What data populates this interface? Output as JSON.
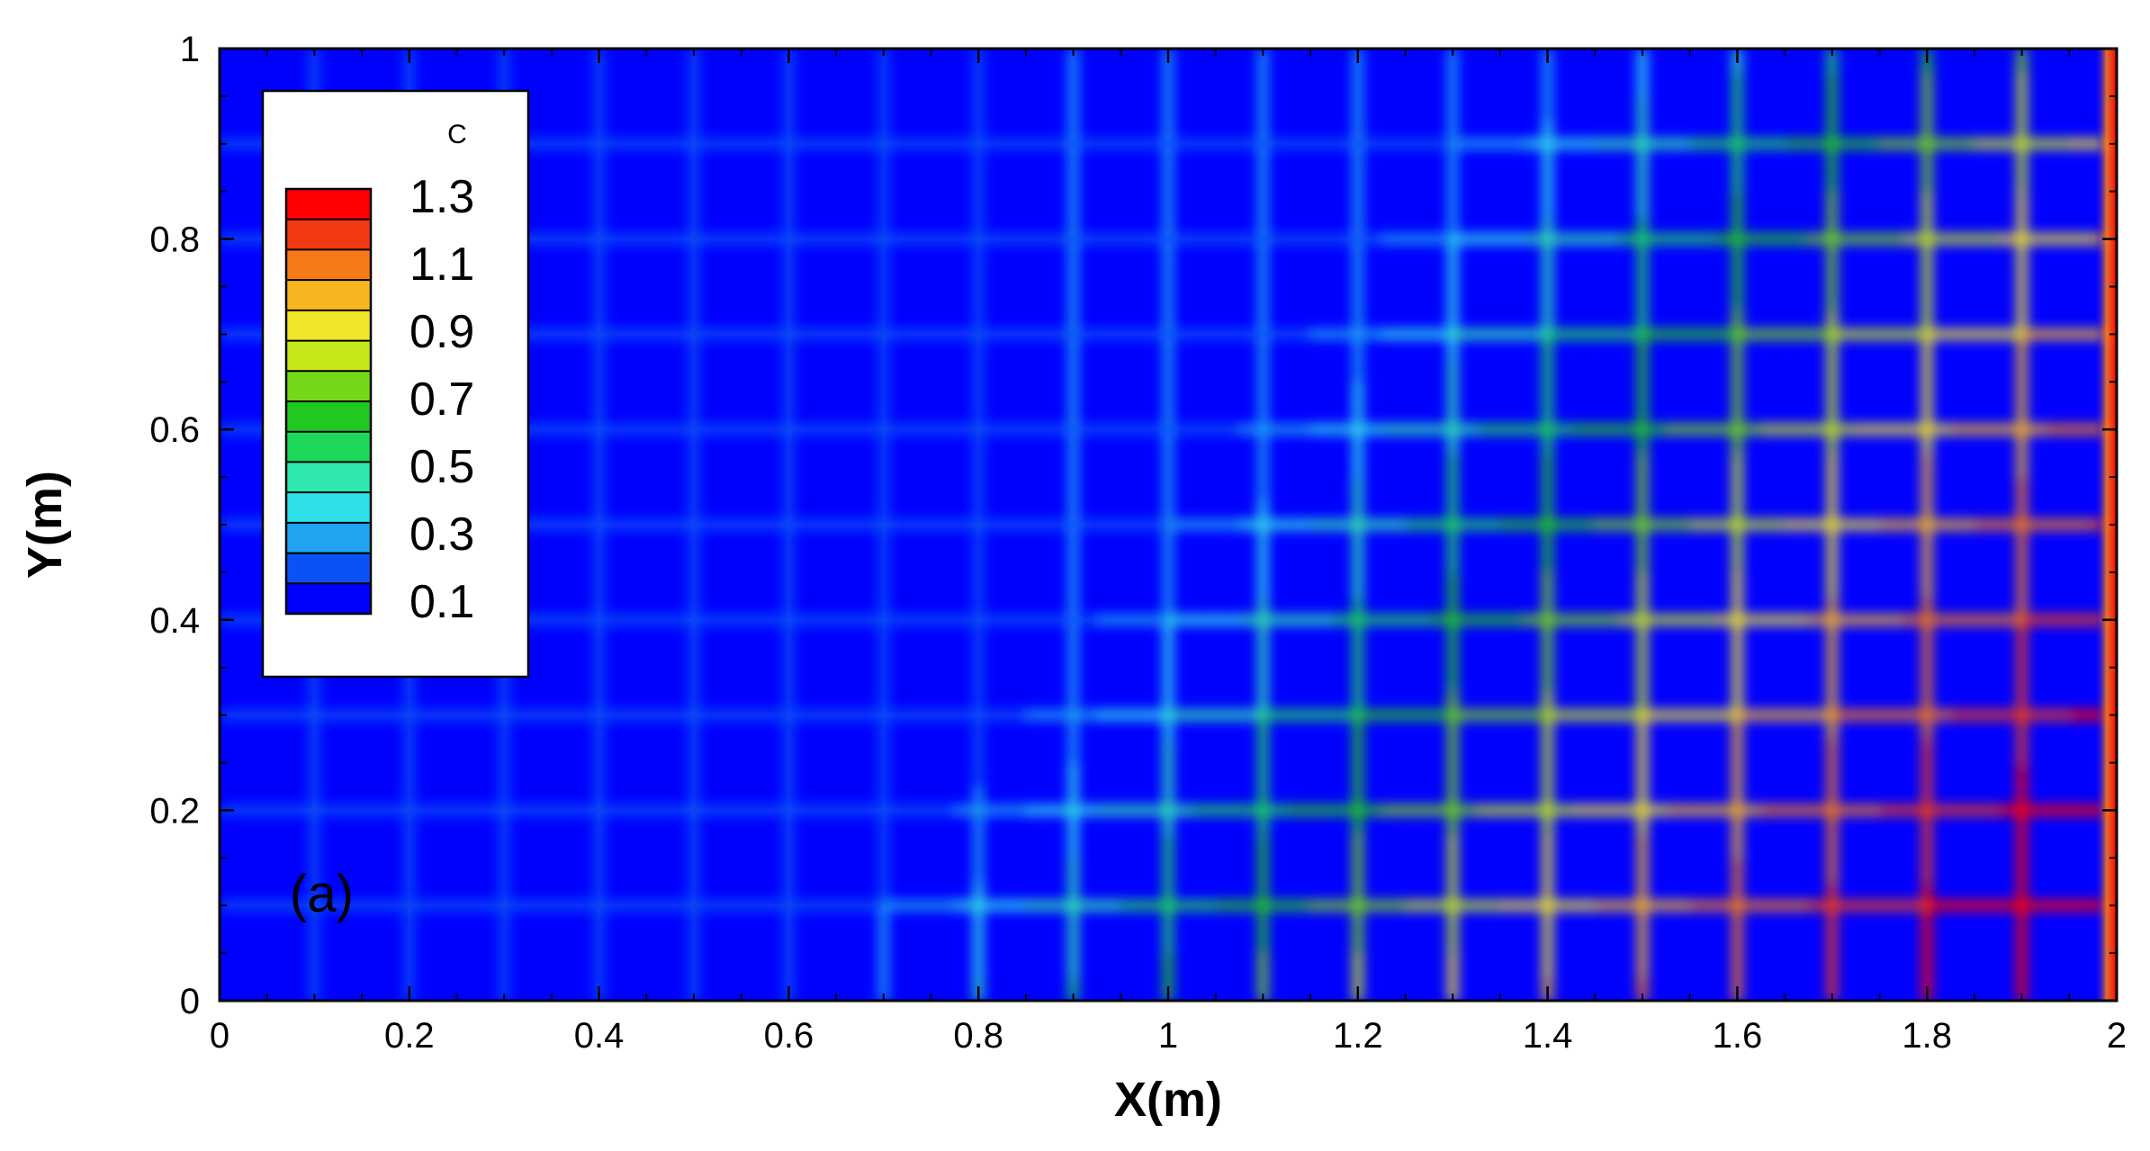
{
  "chart_data": {
    "type": "heatmap",
    "variable": "C",
    "panel_label": "(a)",
    "xlabel": "X(m)",
    "ylabel": "Y(m)",
    "xlim": [
      0,
      2
    ],
    "ylim": [
      0,
      1
    ],
    "x_ticks": [
      "0",
      "0.2",
      "0.4",
      "0.6",
      "0.8",
      "1",
      "1.2",
      "1.4",
      "1.6",
      "1.8",
      "2"
    ],
    "y_ticks": [
      "0",
      "0.2",
      "0.4",
      "0.6",
      "0.8",
      "1"
    ],
    "x_tick_values": [
      0,
      0.2,
      0.4,
      0.6,
      0.8,
      1,
      1.2,
      1.4,
      1.6,
      1.8,
      2
    ],
    "y_tick_values": [
      0,
      0.2,
      0.4,
      0.6,
      0.8,
      1
    ],
    "grid_fractures": {
      "x": [
        0.1,
        0.2,
        0.3,
        0.4,
        0.5,
        0.6,
        0.7,
        0.8,
        0.9,
        1.0,
        1.1,
        1.2,
        1.3,
        1.4,
        1.5,
        1.6,
        1.7,
        1.8,
        1.9
      ],
      "y": [
        0.1,
        0.2,
        0.3,
        0.4,
        0.5,
        0.6,
        0.7,
        0.8,
        0.9
      ]
    },
    "matrix_value": 0.05,
    "right_boundary_value": 1.3,
    "legend": {
      "title": "C",
      "labels": [
        "1.3",
        "1.1",
        "0.9",
        "0.7",
        "0.5",
        "0.3",
        "0.1"
      ],
      "levels": [
        0.0,
        0.1,
        0.2,
        0.3,
        0.4,
        0.5,
        0.6,
        0.7,
        0.8,
        0.9,
        1.0,
        1.1,
        1.2,
        1.3
      ],
      "placement": "top-left"
    },
    "colormap": [
      "#0000ff",
      "#0a52f5",
      "#1fa5f0",
      "#2ee0e8",
      "#2ee8b0",
      "#1ed85a",
      "#20c820",
      "#74d818",
      "#c6e81a",
      "#f2e52a",
      "#f7b520",
      "#f77a18",
      "#f23a12",
      "#ff0000"
    ]
  }
}
